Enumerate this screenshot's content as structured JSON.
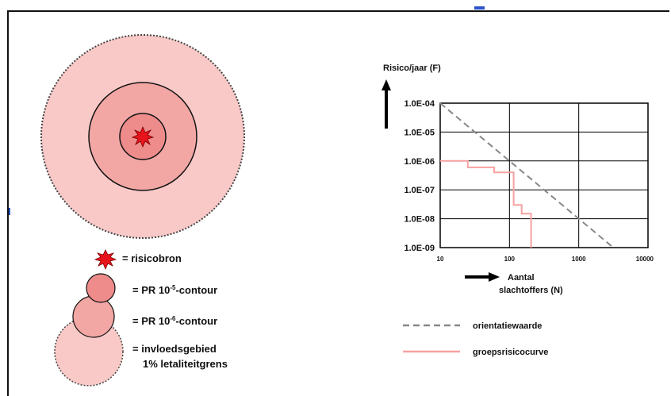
{
  "legend_left": {
    "source_label": "= risicobron",
    "pr5_prefix": "= PR 10",
    "pr5_exp": "-5",
    "pr5_suffix": "-contour",
    "pr6_prefix": "= PR 10",
    "pr6_exp": "-6",
    "pr6_suffix": "-contour",
    "area_line1": "= invloedsgebied",
    "area_line2": "1% letaliteitgrens"
  },
  "colors": {
    "outer_area": "#f9c9c7",
    "pr6_fill": "#f2a7a5",
    "pr5_fill": "#ee8c8b",
    "source": "#e8141c",
    "orientation_line": "#888888",
    "group_risk_line": "#f7a1a0"
  },
  "chart_data": {
    "type": "line",
    "ylabel": "Risico/jaar (F)",
    "xlabel_line1": "Aantal",
    "xlabel_line2": "slachtoffers (N)",
    "x_scale": "log",
    "y_scale": "log",
    "xlim": [
      10,
      10000
    ],
    "ylim": [
      1e-09,
      0.0001
    ],
    "grid": true,
    "y_ticks": [
      "1.0E-04",
      "1.0E-05",
      "1.0E-06",
      "1.0E-07",
      "1.0E-08",
      "1.0E-09"
    ],
    "x_ticks": [
      "10",
      "100",
      "1000",
      "10000"
    ],
    "series": [
      {
        "name": "orientatiewaarde",
        "style": "dashed",
        "x": [
          10,
          3162
        ],
        "y": [
          0.0001,
          1e-09
        ]
      },
      {
        "name": "groepsrisicocurve",
        "style": "solid",
        "x": [
          10,
          25,
          25,
          60,
          60,
          115,
          115,
          150,
          150,
          205,
          205
        ],
        "y": [
          1e-06,
          1e-06,
          6e-07,
          6e-07,
          4e-07,
          4e-07,
          3e-08,
          3e-08,
          1.5e-08,
          1.5e-08,
          1e-09
        ]
      }
    ]
  }
}
